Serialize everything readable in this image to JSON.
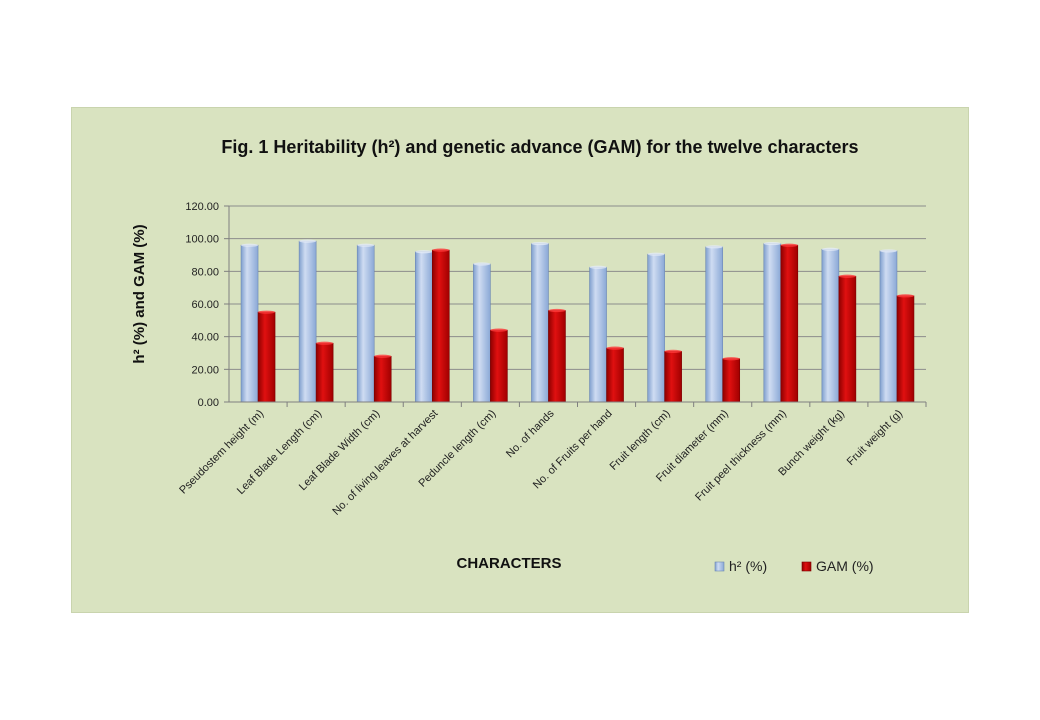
{
  "chart_data": {
    "type": "bar",
    "title": "Fig. 1 Heritability  (h²) and genetic advance (GAM) for the twelve characters",
    "xlabel": "CHARACTERS",
    "ylabel": "h² (%) and GAM (%)",
    "ylim": [
      0,
      120
    ],
    "yticks": [
      "0.00",
      "20.00",
      "40.00",
      "60.00",
      "80.00",
      "100.00",
      "120.00"
    ],
    "grid": true,
    "legend_position": "bottom-right",
    "categories": [
      "Pseudostem height (m)",
      "Leaf Blade Length (cm)",
      "Leaf Blade Width (cm)",
      "No. of living leaves at harvest",
      "Peduncle length (cm)",
      "No. of hands",
      "No. of Fruits per hand",
      "Fruit length (cm)",
      "Fruit diameter (mm)",
      "Fruit peel thickness (mm)",
      "Bunch weight (kg)",
      "Fruit weight (g)"
    ],
    "series": [
      {
        "name": "h² (%)",
        "color": "#9db8e0",
        "values": [
          96,
          98.5,
          96,
          92,
          84.5,
          97,
          82.5,
          90.5,
          95,
          97,
          93.5,
          92.5
        ]
      },
      {
        "name": "GAM (%)",
        "color": "#c00000",
        "values": [
          55,
          36,
          28,
          93,
          44,
          56,
          33,
          31,
          26.5,
          96,
          77,
          65
        ]
      }
    ]
  }
}
